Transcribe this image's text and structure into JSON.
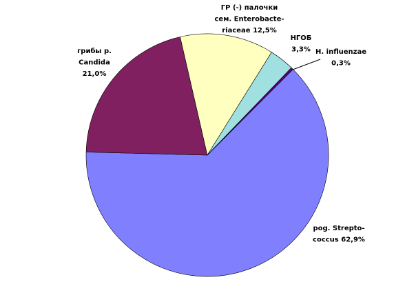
{
  "chart_data": {
    "type": "pie",
    "categories": [
      [
        "pog. Strepto-",
        "coccus"
      ],
      [
        "грибы р.",
        "Candida"
      ],
      [
        "ГР (-) палочки",
        "сем. Enterobacte-",
        "riaceae"
      ],
      [
        "НГОБ"
      ],
      [
        "H. influenzae"
      ]
    ],
    "values": [
      62.9,
      21.0,
      12.5,
      3.3,
      0.3
    ],
    "value_labels": [
      "62,9%",
      "21,0%",
      "12,5%",
      "3,3%",
      "0,3%"
    ],
    "colors": [
      "#8080ff",
      "#802060",
      "#ffffc0",
      "#a0e0e0",
      "#600080"
    ]
  }
}
